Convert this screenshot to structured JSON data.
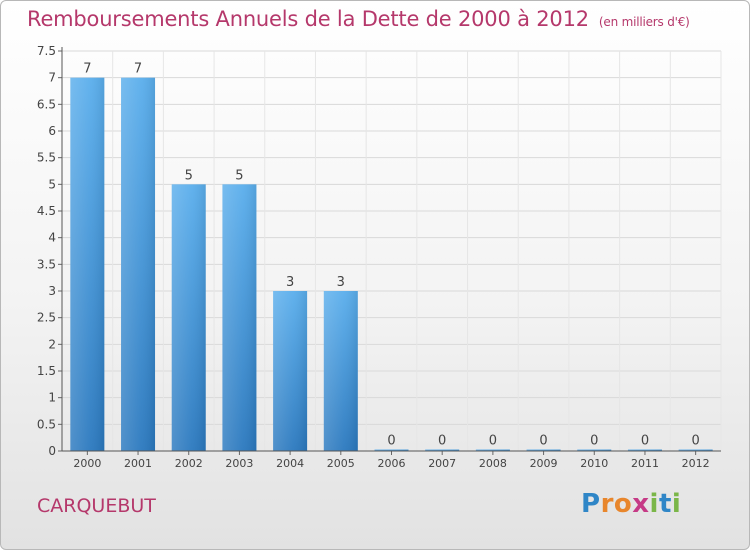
{
  "header": {
    "title": "Remboursements Annuels de la Dette de 2000 à 2012",
    "unit": "(en milliers d'€)"
  },
  "footer": {
    "commune": "CARQUEBUT",
    "logo": [
      "P",
      "r",
      "o",
      "x",
      "i",
      "t",
      "i"
    ],
    "logo_colors": [
      "#2f86c7",
      "#e8862c",
      "#e8862c",
      "#c63a86",
      "#7ab648",
      "#2f86c7",
      "#7ab648"
    ]
  },
  "chart_data": {
    "type": "bar",
    "title": "Remboursements Annuels de la Dette de 2000 à 2012",
    "xlabel": "",
    "ylabel": "",
    "categories": [
      "2000",
      "2001",
      "2002",
      "2003",
      "2004",
      "2005",
      "2006",
      "2007",
      "2008",
      "2009",
      "2010",
      "2011",
      "2012"
    ],
    "values": [
      7,
      7,
      5,
      5,
      3,
      3,
      0,
      0,
      0,
      0,
      0,
      0,
      0
    ],
    "value_labels": [
      "7",
      "7",
      "5",
      "5",
      "3",
      "3",
      "0",
      "0",
      "0",
      "0",
      "0",
      "0",
      "0"
    ],
    "ylim": [
      0,
      7.5
    ],
    "yticks": [
      0,
      0.5,
      1,
      1.5,
      2,
      2.5,
      3,
      3.5,
      4,
      4.5,
      5,
      5.5,
      6,
      6.5,
      7,
      7.5
    ],
    "ytick_labels": [
      "0",
      "0.5",
      "1",
      "1.5",
      "2",
      "2.5",
      "3",
      "3.5",
      "4",
      "4.5",
      "5",
      "5.5",
      "6",
      "6.5",
      "7",
      "7.5"
    ],
    "grid": true,
    "bar_color": "#3b8fd6"
  }
}
